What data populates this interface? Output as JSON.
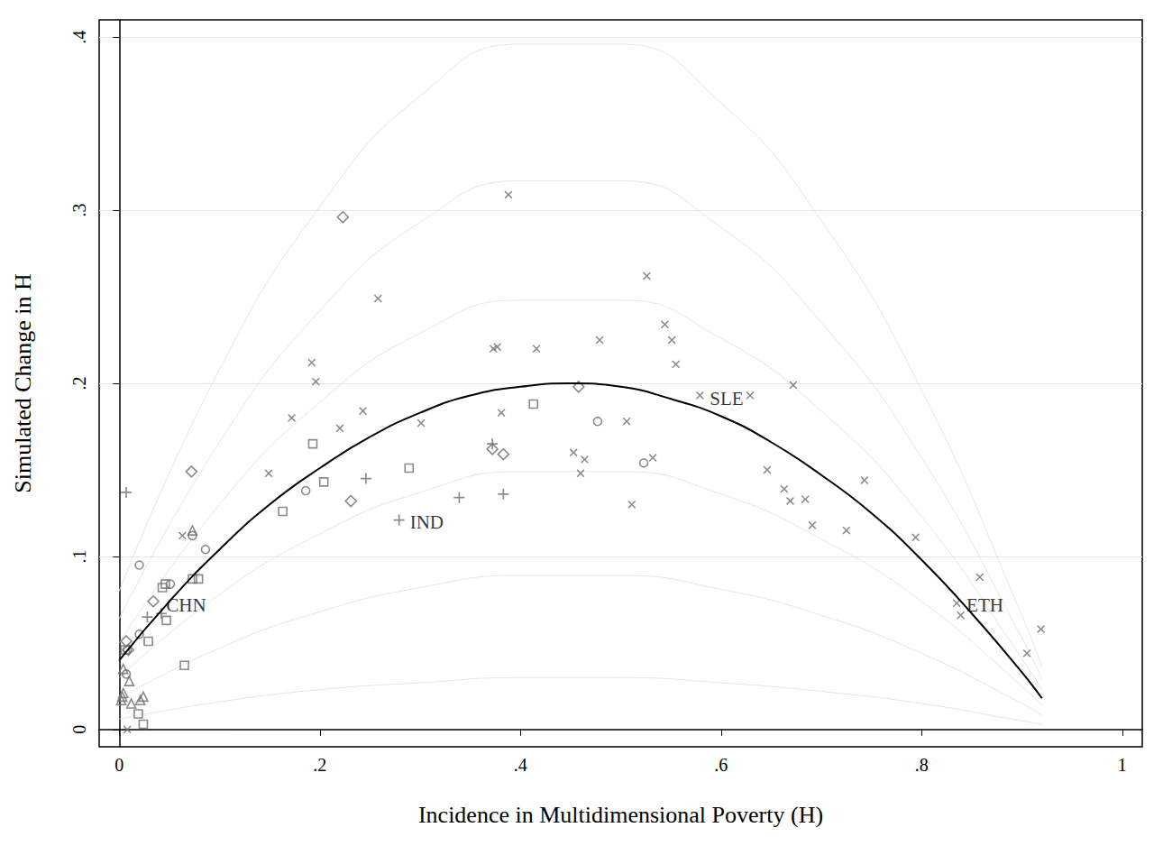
{
  "chart_data": {
    "type": "scatter",
    "x_label": "Incidence in Multidimensional Poverty (H)",
    "y_label": "Simulated Change in H",
    "xlim": [
      -0.02,
      1.02
    ],
    "ylim": [
      -0.01,
      0.41
    ],
    "xticks": [
      0,
      {
        "value": 0.2,
        "label": ".2"
      },
      {
        "value": 0.4,
        "label": ".4"
      },
      {
        "value": 0.6,
        "label": ".6"
      },
      {
        "value": 0.8,
        "label": ".8"
      },
      1
    ],
    "yticks": [
      0,
      {
        "value": 0.1,
        "label": ".1"
      },
      {
        "value": 0.2,
        "label": ".2"
      },
      {
        "value": 0.3,
        "label": ".3"
      },
      {
        "value": 0.4,
        "label": ".4"
      }
    ],
    "grid": "y",
    "series": [
      {
        "type": "line",
        "marker": "none",
        "line_style": "solid",
        "color": "#e2e2e2",
        "values": [
          [
            0,
            0.006
          ],
          [
            0.1,
            0.016
          ],
          [
            0.2,
            0.023
          ],
          [
            0.3,
            0.027
          ],
          [
            0.4,
            0.03
          ],
          [
            0.5,
            0.03
          ],
          [
            0.6,
            0.027
          ],
          [
            0.7,
            0.022
          ],
          [
            0.8,
            0.015
          ],
          [
            0.9,
            0.005
          ],
          [
            0.92,
            0.003
          ]
        ]
      },
      {
        "type": "line",
        "marker": "none",
        "line_style": "solid",
        "color": "#e2e2e2",
        "values": [
          [
            0,
            0.018
          ],
          [
            0.1,
            0.047
          ],
          [
            0.2,
            0.068
          ],
          [
            0.3,
            0.082
          ],
          [
            0.4,
            0.089
          ],
          [
            0.5,
            0.089
          ],
          [
            0.6,
            0.081
          ],
          [
            0.7,
            0.066
          ],
          [
            0.8,
            0.044
          ],
          [
            0.9,
            0.015
          ],
          [
            0.92,
            0.008
          ]
        ]
      },
      {
        "type": "line",
        "marker": "none",
        "line_style": "solid",
        "color": "#e2e2e2",
        "values": [
          [
            0,
            0.03
          ],
          [
            0.1,
            0.078
          ],
          [
            0.2,
            0.113
          ],
          [
            0.3,
            0.137
          ],
          [
            0.4,
            0.149
          ],
          [
            0.5,
            0.149
          ],
          [
            0.6,
            0.136
          ],
          [
            0.7,
            0.11
          ],
          [
            0.8,
            0.074
          ],
          [
            0.9,
            0.025
          ],
          [
            0.92,
            0.014
          ]
        ]
      },
      {
        "type": "line",
        "marker": "none",
        "line_style": "solid",
        "color": "#e2e2e2",
        "values": [
          [
            0,
            0.05
          ],
          [
            0.1,
            0.13
          ],
          [
            0.2,
            0.189
          ],
          [
            0.3,
            0.229
          ],
          [
            0.4,
            0.248
          ],
          [
            0.5,
            0.248
          ],
          [
            0.6,
            0.226
          ],
          [
            0.7,
            0.184
          ],
          [
            0.8,
            0.123
          ],
          [
            0.9,
            0.041
          ],
          [
            0.92,
            0.023
          ]
        ]
      },
      {
        "type": "line",
        "marker": "none",
        "line_style": "solid",
        "color": "#e2e2e2",
        "values": [
          [
            0,
            0.064
          ],
          [
            0.1,
            0.166
          ],
          [
            0.2,
            0.242
          ],
          [
            0.3,
            0.293
          ],
          [
            0.4,
            0.317
          ],
          [
            0.5,
            0.317
          ],
          [
            0.6,
            0.29
          ],
          [
            0.7,
            0.235
          ],
          [
            0.8,
            0.157
          ],
          [
            0.9,
            0.053
          ],
          [
            0.92,
            0.029
          ]
        ]
      },
      {
        "type": "line",
        "marker": "none",
        "line_style": "solid",
        "color": "#e2e2e2",
        "values": [
          [
            0,
            0.08
          ],
          [
            0.1,
            0.208
          ],
          [
            0.2,
            0.302
          ],
          [
            0.3,
            0.366
          ],
          [
            0.4,
            0.396
          ],
          [
            0.5,
            0.396
          ],
          [
            0.6,
            0.362
          ],
          [
            0.7,
            0.294
          ],
          [
            0.8,
            0.196
          ],
          [
            0.9,
            0.066
          ],
          [
            0.92,
            0.036
          ]
        ]
      },
      {
        "type": "scatter",
        "marker": "x",
        "color": "#6e6e6e",
        "values": [
          [
            0.388,
            0.309
          ],
          [
            0.526,
            0.262
          ],
          [
            0.258,
            0.249
          ],
          [
            0.544,
            0.234
          ],
          [
            0.192,
            0.212
          ],
          [
            0.551,
            0.225
          ],
          [
            0.373,
            0.22
          ],
          [
            0.377,
            0.221
          ],
          [
            0.416,
            0.22
          ],
          [
            0.479,
            0.225
          ],
          [
            0.196,
            0.201
          ],
          [
            0.555,
            0.211
          ],
          [
            0.672,
            0.199
          ],
          [
            0.579,
            0.193
          ],
          [
            0.629,
            0.193
          ],
          [
            0.172,
            0.18
          ],
          [
            0.381,
            0.183
          ],
          [
            0.301,
            0.177
          ],
          [
            0.506,
            0.178
          ],
          [
            0.22,
            0.174
          ],
          [
            0.243,
            0.184
          ],
          [
            0.453,
            0.16
          ],
          [
            0.464,
            0.156
          ],
          [
            0.46,
            0.148
          ],
          [
            0.532,
            0.157
          ],
          [
            0.646,
            0.15
          ],
          [
            0.743,
            0.144
          ],
          [
            0.663,
            0.139
          ],
          [
            0.669,
            0.132
          ],
          [
            0.684,
            0.133
          ],
          [
            0.511,
            0.13
          ],
          [
            0.691,
            0.118
          ],
          [
            0.725,
            0.115
          ],
          [
            0.794,
            0.111
          ],
          [
            0.858,
            0.088
          ],
          [
            0.835,
            0.073
          ],
          [
            0.839,
            0.066
          ],
          [
            0.905,
            0.044
          ],
          [
            0.919,
            0.058
          ],
          [
            0.149,
            0.148
          ],
          [
            0.063,
            0.112
          ],
          [
            0.008,
            0.0
          ]
        ]
      },
      {
        "type": "scatter",
        "marker": "plus",
        "color": "#6e6e6e",
        "values": [
          [
            0.007,
            0.137
          ],
          [
            0.279,
            0.121
          ],
          [
            0.339,
            0.134
          ],
          [
            0.383,
            0.136
          ],
          [
            0.246,
            0.145
          ],
          [
            0.372,
            0.165
          ],
          [
            0.028,
            0.065
          ],
          [
            0.042,
            0.067
          ]
        ]
      },
      {
        "type": "scatter",
        "marker": "diamond",
        "color": "#6e6e6e",
        "values": [
          [
            0.223,
            0.296
          ],
          [
            0.458,
            0.198
          ],
          [
            0.072,
            0.149
          ],
          [
            0.372,
            0.162
          ],
          [
            0.383,
            0.159
          ],
          [
            0.231,
            0.132
          ],
          [
            0.034,
            0.074
          ],
          [
            0.007,
            0.051
          ],
          [
            0.009,
            0.046
          ]
        ]
      },
      {
        "type": "scatter",
        "marker": "square",
        "color": "#6e6e6e",
        "values": [
          [
            0.413,
            0.188
          ],
          [
            0.193,
            0.165
          ],
          [
            0.204,
            0.143
          ],
          [
            0.289,
            0.151
          ],
          [
            0.163,
            0.126
          ],
          [
            0.073,
            0.087
          ],
          [
            0.079,
            0.087
          ],
          [
            0.043,
            0.082
          ],
          [
            0.046,
            0.084
          ],
          [
            0.047,
            0.063
          ],
          [
            0.029,
            0.051
          ],
          [
            0.065,
            0.037
          ],
          [
            0.019,
            0.009
          ],
          [
            0.024,
            0.003
          ],
          [
            0.006,
            0.046
          ]
        ]
      },
      {
        "type": "scatter",
        "marker": "circle",
        "color": "#6e6e6e",
        "values": [
          [
            0.477,
            0.178
          ],
          [
            0.523,
            0.154
          ],
          [
            0.186,
            0.138
          ],
          [
            0.086,
            0.104
          ],
          [
            0.073,
            0.112
          ],
          [
            0.02,
            0.095
          ],
          [
            0.051,
            0.084
          ],
          [
            0.02,
            0.055
          ],
          [
            0.008,
            0.046
          ],
          [
            0.007,
            0.032
          ]
        ]
      },
      {
        "type": "scatter",
        "marker": "triangle",
        "color": "#6e6e6e",
        "values": [
          [
            0.073,
            0.115
          ],
          [
            0.004,
            0.035
          ],
          [
            0.024,
            0.019
          ],
          [
            0.021,
            0.017
          ],
          [
            0.01,
            0.028
          ],
          [
            0.003,
            0.019
          ],
          [
            0.004,
            0.021
          ],
          [
            0.012,
            0.015
          ],
          [
            0.002,
            0.017
          ]
        ]
      },
      {
        "type": "line",
        "marker": "none",
        "line_style": "solid",
        "color": "#000000",
        "values": [
          [
            0,
            0.04
          ],
          [
            0.05,
            0.074
          ],
          [
            0.1,
            0.104
          ],
          [
            0.15,
            0.13
          ],
          [
            0.2,
            0.151
          ],
          [
            0.25,
            0.169
          ],
          [
            0.3,
            0.183
          ],
          [
            0.35,
            0.193
          ],
          [
            0.4,
            0.198
          ],
          [
            0.45,
            0.2
          ],
          [
            0.5,
            0.198
          ],
          [
            0.55,
            0.191
          ],
          [
            0.6,
            0.181
          ],
          [
            0.65,
            0.166
          ],
          [
            0.7,
            0.147
          ],
          [
            0.75,
            0.125
          ],
          [
            0.8,
            0.098
          ],
          [
            0.85,
            0.067
          ],
          [
            0.9,
            0.033
          ],
          [
            0.92,
            0.018
          ]
        ]
      }
    ],
    "annotations": [
      {
        "text": "CHN",
        "x": 0.045,
        "y": 0.072
      },
      {
        "text": "IND",
        "x": 0.288,
        "y": 0.12
      },
      {
        "text": "SLE",
        "x": 0.587,
        "y": 0.191
      },
      {
        "text": "ETH",
        "x": 0.843,
        "y": 0.072
      }
    ]
  }
}
